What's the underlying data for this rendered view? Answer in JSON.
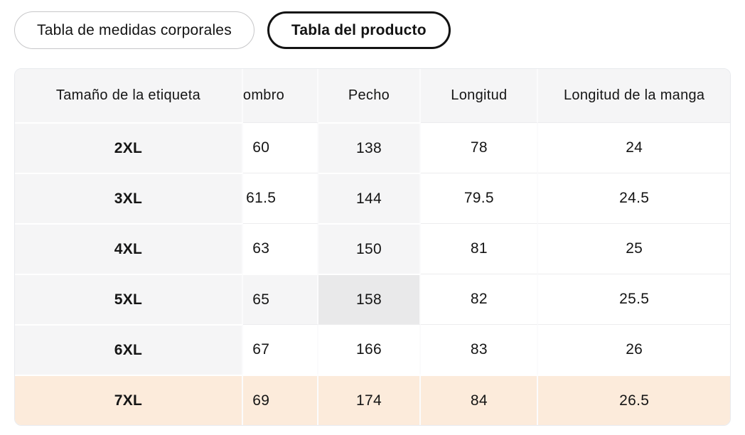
{
  "tabs": [
    {
      "label": "Tabla de medidas corporales",
      "active": false
    },
    {
      "label": "Tabla del producto",
      "active": true
    }
  ],
  "table": {
    "columns": [
      "Tamaño de la etiqueta",
      "ombro",
      "Pecho",
      "Longitud",
      "Longitud de la manga"
    ],
    "rows": [
      {
        "cells": [
          "2XL",
          "60",
          "138",
          "78",
          "24"
        ]
      },
      {
        "cells": [
          "3XL",
          "61.5",
          "144",
          "79.5",
          "24.5"
        ]
      },
      {
        "cells": [
          "4XL",
          "63",
          "150",
          "81",
          "25"
        ]
      },
      {
        "cells": [
          "5XL",
          "65",
          "158",
          "82",
          "25.5"
        ]
      },
      {
        "cells": [
          "6XL",
          "67",
          "166",
          "83",
          "26"
        ]
      },
      {
        "cells": [
          "7XL",
          "69",
          "174",
          "84",
          "26.5"
        ]
      }
    ],
    "cell_styles": [
      [
        "gray",
        "white",
        "gray",
        "white",
        "white"
      ],
      [
        "gray",
        "white",
        "gray",
        "white",
        "white"
      ],
      [
        "gray",
        "white",
        "gray",
        "white",
        "white"
      ],
      [
        "gray",
        "gray",
        "dark",
        "white",
        "white"
      ],
      [
        "gray",
        "white",
        "white",
        "white",
        "white"
      ],
      [
        "peach",
        "peach",
        "peach",
        "peach",
        "peach"
      ]
    ],
    "selected_row": "7XL",
    "crosshair": {
      "row": "5XL",
      "column": "Pecho",
      "value": "158"
    }
  },
  "colors": {
    "header_gray": "#f5f5f6",
    "crosshair_gray": "#f5f5f6",
    "crosshair_intersection": "#e9e9ea",
    "selected_row_peach": "#fcebdb",
    "active_tab_border": "#131313",
    "inactive_tab_border": "#c7c7c9",
    "text": "#151515"
  }
}
